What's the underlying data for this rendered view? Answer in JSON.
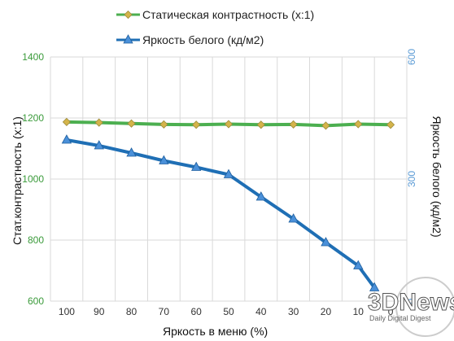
{
  "chart_data": {
    "type": "line",
    "xlabel": "Яркость в меню (%)",
    "ylabel_left": "Стат.контрастность  (x:1)",
    "ylabel_right": "Яркость белого (кд/м2)",
    "x": [
      100,
      90,
      80,
      70,
      60,
      50,
      40,
      30,
      20,
      10,
      0
    ],
    "x_tick_labels": [
      "100",
      "90",
      "80",
      "70",
      "60",
      "50",
      "40",
      "30",
      "20",
      "10",
      "0"
    ],
    "ylim_left": [
      600,
      1400
    ],
    "y_ticks_left": [
      600,
      800,
      1000,
      1200,
      1400
    ],
    "ylim_right": [
      0,
      600
    ],
    "y_ticks_right": [
      0,
      300,
      600
    ],
    "grid": true,
    "legend_position": "top",
    "series": [
      {
        "name": "Статическая контрастность  (x:1)",
        "axis": "left",
        "color": "#4caf50",
        "marker": "diamond",
        "marker_color": "#d4b44a",
        "values": [
          1187,
          1185,
          1182,
          1179,
          1178,
          1180,
          1178,
          1179,
          1175,
          1180,
          1178
        ]
      },
      {
        "name": "Яркость белого (кд/м2)",
        "axis": "right",
        "color": "#1f6fb5",
        "marker": "triangle",
        "marker_color": "#4a90d9",
        "values": [
          [
            100,
            396
          ],
          [
            90,
            382
          ],
          [
            80,
            364
          ],
          [
            70,
            345
          ],
          [
            60,
            329
          ],
          [
            50,
            311
          ],
          [
            40,
            256
          ],
          [
            30,
            202
          ],
          [
            20,
            144
          ],
          [
            10,
            87
          ],
          [
            5,
            33
          ]
        ]
      }
    ]
  },
  "watermark": {
    "logo_text": "3DNews",
    "tagline": "Daily Digital Digest"
  }
}
